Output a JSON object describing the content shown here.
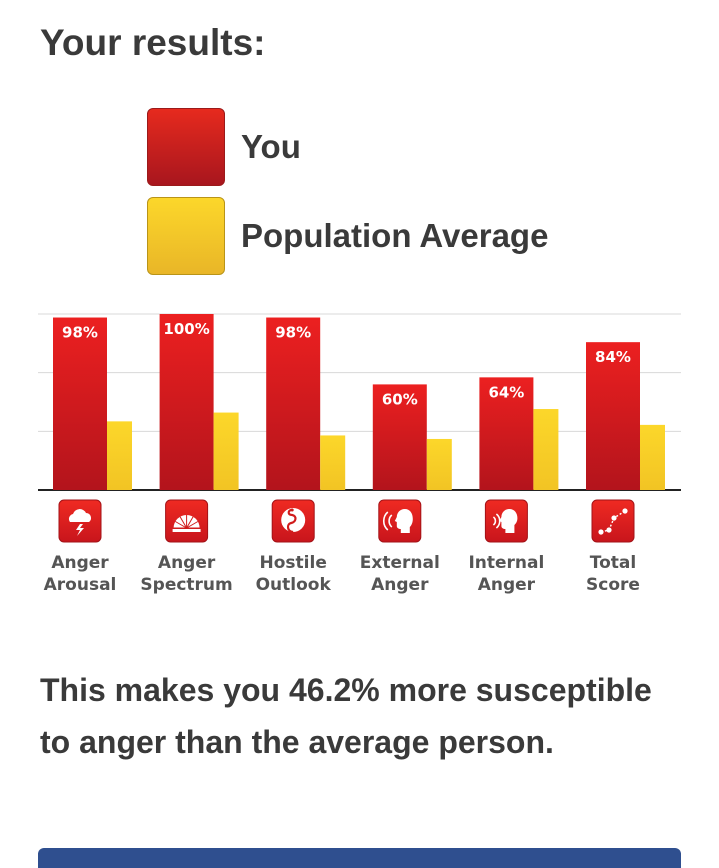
{
  "heading": "Your results:",
  "legend": [
    {
      "label": "You",
      "color": "#d9191e"
    },
    {
      "label": "Population Average",
      "color": "#f8ce26"
    }
  ],
  "chart_data": {
    "type": "bar",
    "categories": [
      {
        "line1": "Anger",
        "line2": "Arousal",
        "icon": "cloud-lightning-icon"
      },
      {
        "line1": "Anger",
        "line2": "Spectrum",
        "icon": "spectrum-fan-icon"
      },
      {
        "line1": "Hostile",
        "line2": "Outlook",
        "icon": "coiled-snake-icon"
      },
      {
        "line1": "External",
        "line2": "Anger",
        "icon": "shouting-head-icon"
      },
      {
        "line1": "Internal",
        "line2": "Anger",
        "icon": "head-soundwaves-icon"
      },
      {
        "line1": "Total",
        "line2": "Score",
        "icon": "connected-dots-icon"
      }
    ],
    "series": [
      {
        "name": "You",
        "values": [
          98,
          100,
          98,
          60,
          64,
          84
        ],
        "labels": [
          "98%",
          "100%",
          "98%",
          "60%",
          "64%",
          "84%"
        ]
      },
      {
        "name": "Population Average",
        "values": [
          39,
          44,
          31,
          29,
          46,
          37
        ]
      }
    ],
    "ylim": [
      0,
      100
    ],
    "grid": true
  },
  "summary": "This makes you 46.2% more susceptible to anger than the average person."
}
